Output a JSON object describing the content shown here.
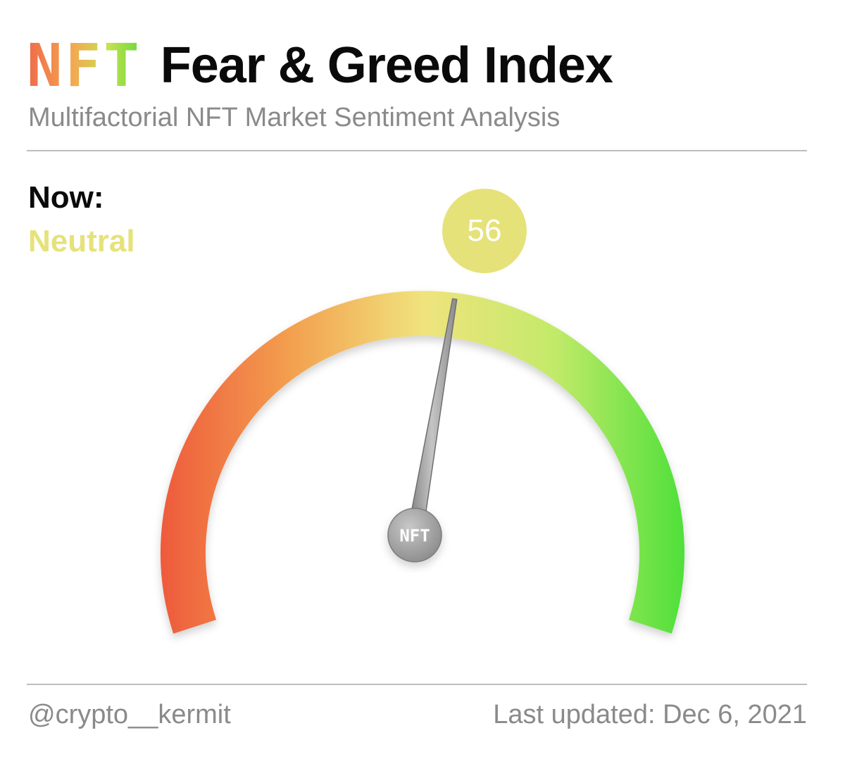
{
  "header": {
    "logo_text": "NFT",
    "title": "Fear & Greed Index",
    "subtitle": "Multifactorial NFT Market Sentiment Analysis"
  },
  "status": {
    "now_label": "Now:",
    "state": "Neutral",
    "state_color": "#e6e27a"
  },
  "hub_label": "NFT",
  "colors": {
    "fear": "#ee5a3c",
    "mid_fear": "#f3a04f",
    "neutral": "#f0e37d",
    "mid_greed": "#c3ea6a",
    "greed": "#4fe03a",
    "needle": "#9a9a9a"
  },
  "chart_data": {
    "type": "gauge",
    "value": 56,
    "value_label": "56",
    "range": [
      0,
      100
    ],
    "classification": "Neutral"
  },
  "footer": {
    "author": "@crypto__kermit",
    "last_updated": "Last updated: Dec 6, 2021"
  }
}
